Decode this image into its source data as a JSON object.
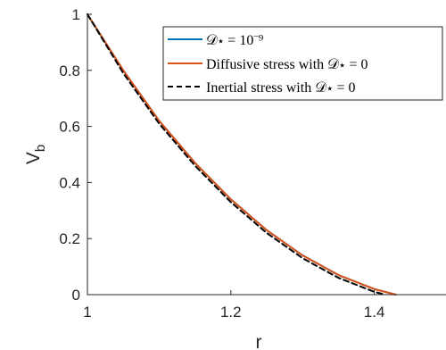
{
  "chart_data": {
    "type": "line",
    "xlabel": "r",
    "ylabel": "V",
    "ylabel_subscript": "b",
    "xlim": [
      1,
      1.5
    ],
    "ylim": [
      0,
      1
    ],
    "xticks": [
      1,
      1.2,
      1.4
    ],
    "xtick_labels": [
      "1",
      "1.2",
      "1.4"
    ],
    "yticks": [
      0,
      0.2,
      0.4,
      0.6,
      0.8,
      1
    ],
    "ytick_labels": [
      "0",
      "0.2",
      "0.4",
      "0.6",
      "0.8",
      "1"
    ],
    "grid": false,
    "legend_position": "top-right",
    "series": [
      {
        "name": "𝒟⋆ = 10⁻⁹",
        "color": "#0072BD",
        "style": "solid",
        "x": [
          1.0,
          1.05,
          1.1,
          1.15,
          1.2,
          1.25,
          1.3,
          1.35,
          1.4,
          1.43
        ],
        "y": [
          1.0,
          0.8,
          0.62,
          0.47,
          0.34,
          0.23,
          0.14,
          0.07,
          0.02,
          0.0
        ]
      },
      {
        "name": "Diffusive stress with 𝒟⋆ = 0",
        "color": "#D95319",
        "style": "solid",
        "x": [
          1.0,
          1.05,
          1.1,
          1.15,
          1.2,
          1.25,
          1.3,
          1.35,
          1.4,
          1.43
        ],
        "y": [
          1.0,
          0.8,
          0.62,
          0.47,
          0.34,
          0.23,
          0.14,
          0.07,
          0.02,
          0.0
        ]
      },
      {
        "name": "Inertial stress with 𝒟⋆ = 0",
        "color": "#000000",
        "style": "dashed",
        "x": [
          1.0,
          1.05,
          1.1,
          1.15,
          1.2,
          1.25,
          1.3,
          1.35,
          1.4,
          1.415
        ],
        "y": [
          1.0,
          0.79,
          0.61,
          0.46,
          0.33,
          0.22,
          0.13,
          0.06,
          0.01,
          0.0
        ]
      }
    ]
  }
}
